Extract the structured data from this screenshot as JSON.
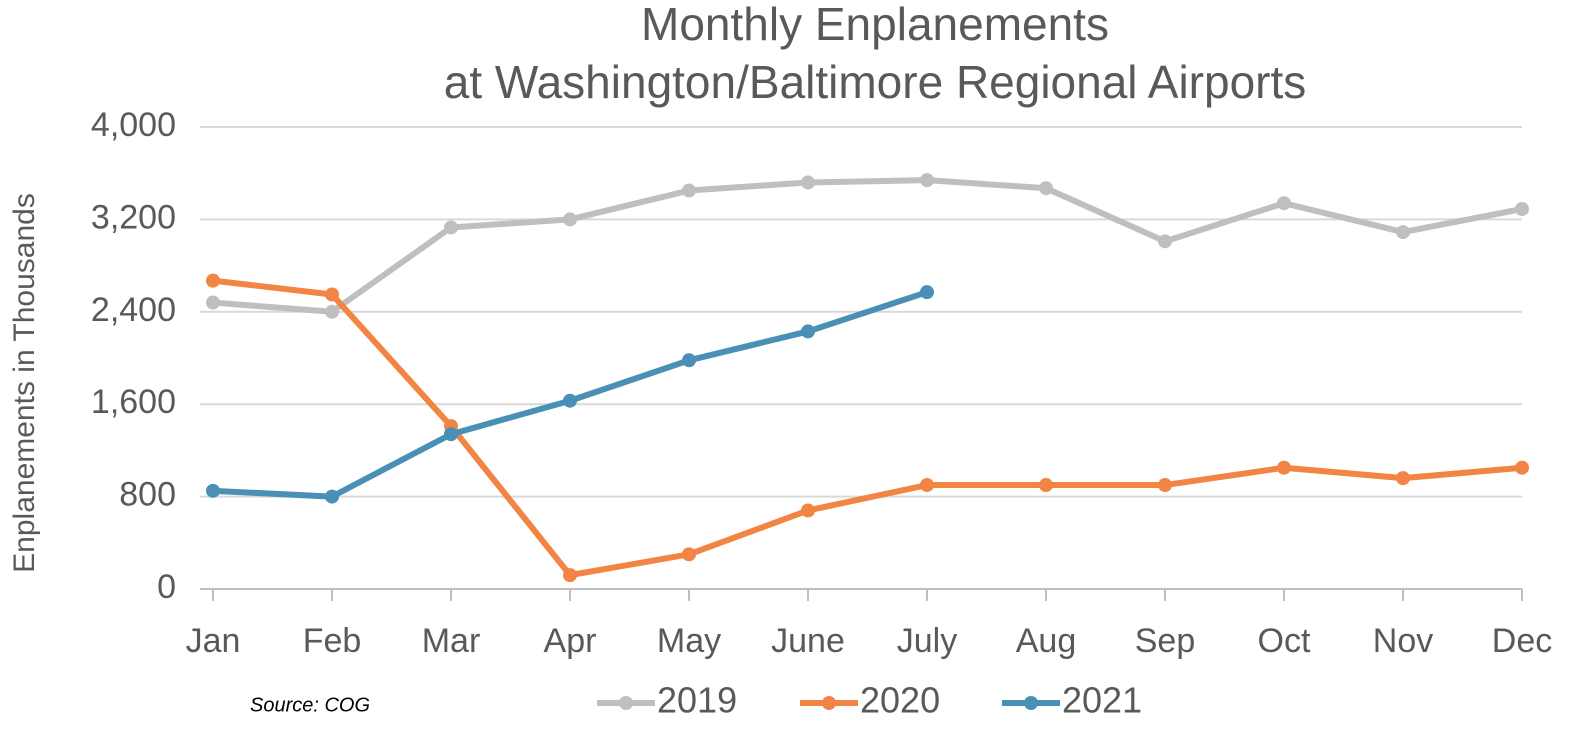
{
  "chart_data": {
    "type": "line",
    "title": [
      "Monthly Enplanements",
      "at Washington/Baltimore Regional Airports"
    ],
    "y_label": "Enplanements in Thousands",
    "source": "Source: COG",
    "categories": [
      "Jan",
      "Feb",
      "Mar",
      "Apr",
      "May",
      "June",
      "July",
      "Aug",
      "Sep",
      "Oct",
      "Nov",
      "Dec"
    ],
    "series": [
      {
        "name": "2019",
        "color": "#bfbfbf",
        "values": [
          2480,
          2400,
          3130,
          3200,
          3450,
          3520,
          3540,
          3470,
          3010,
          3340,
          3090,
          3290
        ]
      },
      {
        "name": "2020",
        "color": "#f28444",
        "values": [
          2670,
          2550,
          1410,
          120,
          300,
          680,
          900,
          900,
          900,
          1050,
          960,
          1050
        ]
      },
      {
        "name": "2021",
        "color": "#4a8fb5",
        "values": [
          850,
          800,
          1340,
          1630,
          1980,
          2230,
          2570,
          null,
          null,
          null,
          null,
          null
        ]
      }
    ],
    "ylim": [
      0,
      4000
    ],
    "yticks": [
      0,
      800,
      {
        "value": 1600,
        "label": "1,600"
      },
      {
        "value": 2400,
        "label": "2,400"
      },
      {
        "value": 3200,
        "label": "3,200"
      },
      {
        "value": 4000,
        "label": "4,000"
      }
    ],
    "grid": true,
    "legend": "bottom"
  }
}
